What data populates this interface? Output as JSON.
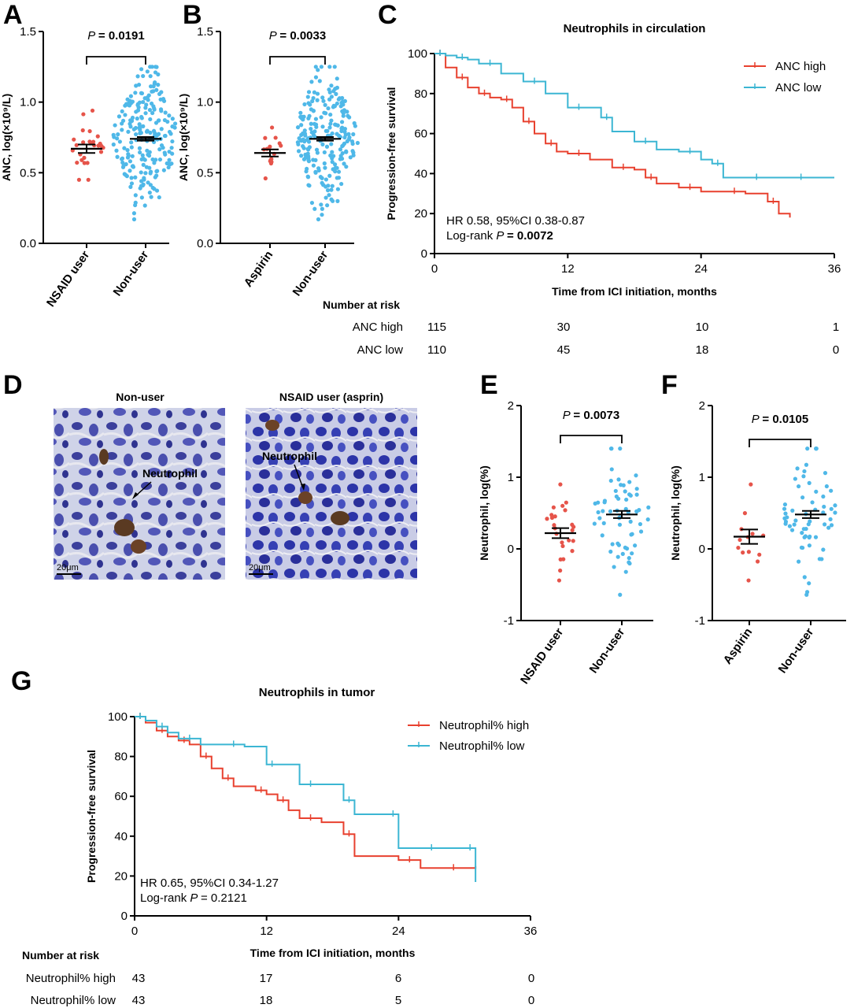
{
  "panels": {
    "A": {
      "letter": "A"
    },
    "B": {
      "letter": "B"
    },
    "C": {
      "letter": "C"
    },
    "D": {
      "letter": "D"
    },
    "E": {
      "letter": "E"
    },
    "F": {
      "letter": "F"
    },
    "G": {
      "letter": "G"
    }
  },
  "colors": {
    "red": "#e6544a",
    "blue": "#4fb8e8",
    "km_red": "#e8412f",
    "km_blue": "#3cb6d3"
  },
  "chart_data": [
    {
      "id": "A",
      "type": "scatter",
      "ylabel": "ANC, log(×10⁹/L)",
      "ylim": [
        0,
        1.5
      ],
      "yticks": [
        "0.0",
        "0.5",
        "1.0",
        "1.5"
      ],
      "categories": [
        "NSAID user",
        "Non-user"
      ],
      "p_prefix": "P",
      "p_value": "= 0.0191",
      "groups": [
        {
          "name": "NSAID user",
          "n": 26,
          "mean": 0.67,
          "sem": 0.03,
          "min": 0.45,
          "max": 0.94
        },
        {
          "name": "Non-user",
          "n": 220,
          "mean": 0.74,
          "sem": 0.013,
          "min": 0.17,
          "max": 1.25
        }
      ]
    },
    {
      "id": "B",
      "type": "scatter",
      "ylabel": "ANC, log(×10⁹/L)",
      "ylim": [
        0,
        1.5
      ],
      "yticks": [
        "0.0",
        "0.5",
        "1.0",
        "1.5"
      ],
      "categories": [
        "Aspirin",
        "Non-user"
      ],
      "p_prefix": "P",
      "p_value": "= 0.0033",
      "groups": [
        {
          "name": "Aspirin",
          "n": 15,
          "mean": 0.64,
          "sem": 0.025,
          "min": 0.46,
          "max": 0.82
        },
        {
          "name": "Non-user",
          "n": 220,
          "mean": 0.74,
          "sem": 0.013,
          "min": 0.17,
          "max": 1.25
        }
      ]
    },
    {
      "id": "C",
      "type": "line",
      "title": "Neutrophils in circulation",
      "xlabel": "Time from ICI initiation, months",
      "ylabel": "Progression-free survival",
      "xlim": [
        0,
        36
      ],
      "ylim": [
        0,
        100
      ],
      "xticks": [
        "0",
        "12",
        "24",
        "36"
      ],
      "yticks": [
        "0",
        "20",
        "40",
        "60",
        "80",
        "100"
      ],
      "stats_line1": "HR 0.58, 95%CI 0.38-0.87",
      "stats_prefix": "Log-rank",
      "stats_p": "P",
      "stats_value": "= 0.0072",
      "series": [
        {
          "name": "ANC high",
          "color": "#e8412f",
          "x": [
            0,
            1,
            2,
            3,
            4,
            5,
            6,
            7,
            8,
            9,
            10,
            11,
            12,
            14,
            16,
            18,
            19,
            20,
            22,
            24,
            26,
            28,
            30,
            31,
            32
          ],
          "y": [
            100,
            93,
            88,
            83,
            80,
            78,
            77,
            73,
            66,
            60,
            55,
            51,
            50,
            47,
            43,
            42,
            38,
            35,
            33,
            31,
            31,
            30,
            26,
            20,
            18
          ]
        },
        {
          "name": "ANC low",
          "color": "#3cb6d3",
          "x": [
            0,
            1,
            2,
            3,
            4,
            6,
            8,
            10,
            12,
            14,
            15,
            16,
            18,
            20,
            22,
            24,
            25,
            26,
            28,
            30,
            32,
            34,
            36
          ],
          "y": [
            100,
            99,
            98,
            97,
            95,
            90,
            86,
            80,
            73,
            73,
            68,
            61,
            56,
            52,
            51,
            47,
            45,
            38,
            38,
            38,
            38,
            38,
            38
          ]
        }
      ],
      "risk": {
        "header": "Number at risk",
        "rows": [
          {
            "label": "ANC high",
            "values": [
              "115",
              "30",
              "10",
              "1"
            ]
          },
          {
            "label": "ANC low",
            "values": [
              "110",
              "45",
              "18",
              "0"
            ]
          }
        ]
      }
    },
    {
      "id": "E",
      "type": "scatter",
      "ylabel": "Neutrophil, log(%)",
      "ylim": [
        -1,
        2
      ],
      "yticks": [
        "-1",
        "0",
        "1",
        "2"
      ],
      "categories": [
        "NSAID user",
        "Non-user"
      ],
      "p_prefix": "P",
      "p_value": "= 0.0073",
      "groups": [
        {
          "name": "NSAID user",
          "n": 24,
          "mean": 0.22,
          "sem": 0.07,
          "min": -0.44,
          "max": 0.9
        },
        {
          "name": "Non-user",
          "n": 62,
          "mean": 0.48,
          "sem": 0.05,
          "min": -0.64,
          "max": 1.4
        }
      ]
    },
    {
      "id": "F",
      "type": "scatter",
      "ylabel": "Neutrophil, log(%)",
      "ylim": [
        -1,
        2
      ],
      "yticks": [
        "-1",
        "0",
        "1",
        "2"
      ],
      "categories": [
        "Aspirin",
        "Non-user"
      ],
      "p_prefix": "P",
      "p_value": "= 0.0105",
      "groups": [
        {
          "name": "Aspirin",
          "n": 13,
          "mean": 0.17,
          "sem": 0.1,
          "min": -0.44,
          "max": 0.9
        },
        {
          "name": "Non-user",
          "n": 62,
          "mean": 0.48,
          "sem": 0.05,
          "min": -0.64,
          "max": 1.4
        }
      ]
    },
    {
      "id": "G",
      "type": "line",
      "title": "Neutrophils in tumor",
      "xlabel": "Time from ICI initiation, months",
      "ylabel": "Progression-free survival",
      "xlim": [
        0,
        36
      ],
      "ylim": [
        0,
        100
      ],
      "xticks": [
        "0",
        "12",
        "24",
        "36"
      ],
      "yticks": [
        "0",
        "20",
        "40",
        "60",
        "80",
        "100"
      ],
      "stats_line1": "HR 0.65, 95%CI 0.34-1.27",
      "stats_prefix": "Log-rank",
      "stats_p": "P",
      "stats_value": "= 0.2121",
      "series": [
        {
          "name": "Neutrophil% high",
          "color": "#e8412f",
          "x": [
            0,
            1,
            2,
            3,
            4,
            5,
            6,
            7,
            8,
            9,
            11,
            12,
            13,
            14,
            15,
            17,
            19,
            20,
            24,
            26,
            28,
            30,
            31
          ],
          "y": [
            100,
            97,
            93,
            90,
            88,
            86,
            80,
            74,
            69,
            65,
            63,
            61,
            58,
            53,
            49,
            47,
            41,
            30,
            28,
            24,
            24,
            24,
            25
          ]
        },
        {
          "name": "Neutrophil% low",
          "color": "#3cb6d3",
          "x": [
            0,
            1,
            2,
            3,
            4,
            6,
            8,
            10,
            12,
            13,
            15,
            17,
            19,
            20,
            23,
            24,
            26,
            28,
            30,
            31
          ],
          "y": [
            100,
            98,
            95,
            92,
            89,
            86,
            86,
            85,
            76,
            76,
            66,
            66,
            58,
            51,
            51,
            34,
            34,
            34,
            34,
            17
          ]
        }
      ],
      "risk": {
        "header": "Number at risk",
        "rows": [
          {
            "label": "Neutrophil% high",
            "values": [
              "43",
              "17",
              "6",
              "0"
            ]
          },
          {
            "label": "Neutrophil% low",
            "values": [
              "43",
              "18",
              "5",
              "0"
            ]
          }
        ]
      }
    }
  ],
  "micrographs": {
    "left": {
      "title": "Non-user",
      "annotation": "Neutrophil",
      "scale": "20μm"
    },
    "right": {
      "title": "NSAID user (asprin)",
      "annotation": "Neutrophil",
      "scale": "20μm"
    }
  }
}
